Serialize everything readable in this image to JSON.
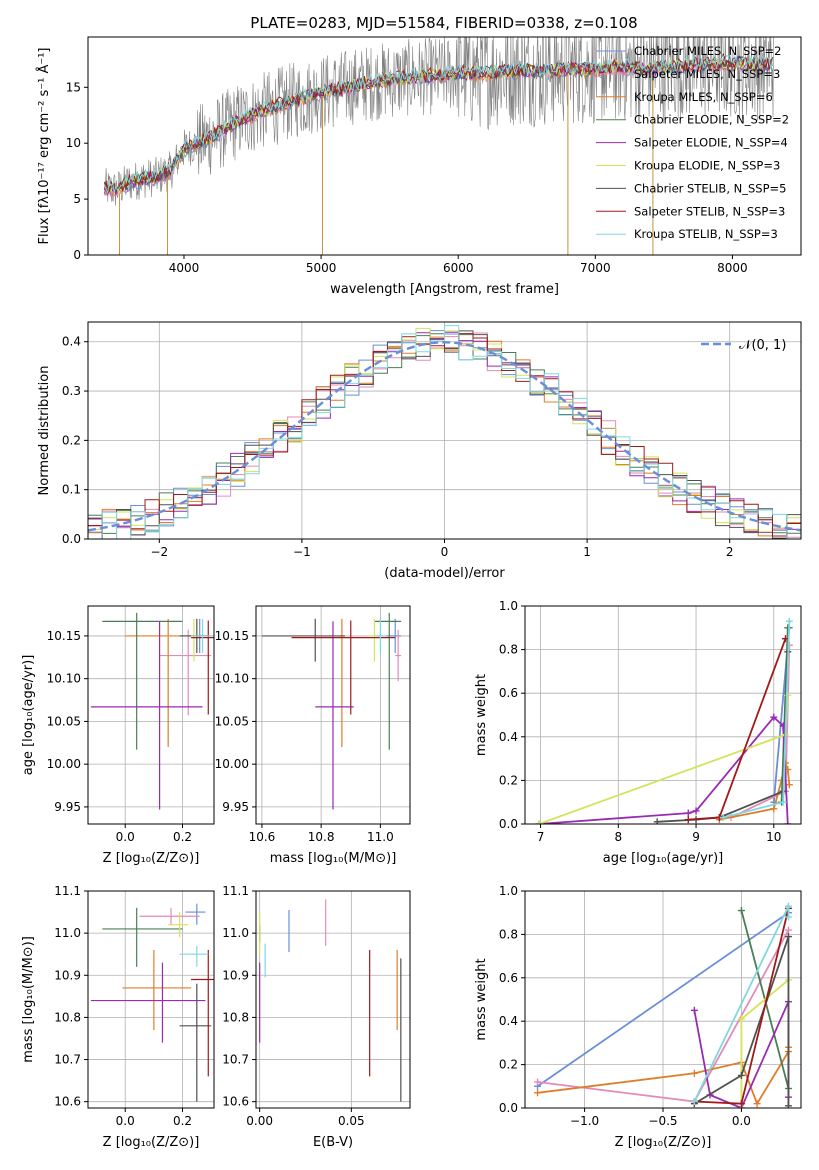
{
  "colors": {
    "Chabrier MILES": "#6a8fd8",
    "Salpeter MILES": "#e58ab8",
    "Kroupa MILES": "#de7e2b",
    "Chabrier ELODIE": "#4a7f55",
    "Salpeter ELODIE": "#9a2ab3",
    "Kroupa ELODIE": "#d4e35a",
    "Chabrier STELIB": "#505050",
    "Salpeter STELIB": "#a01a1a",
    "Kroupa STELIB": "#7fd8e0",
    "data": "#808080",
    "gaussian": "#6a8fd8"
  },
  "figure": {
    "title": "PLATE=0283, MJD=51584, FIBERID=0338, z=0.108"
  },
  "chart_data": [
    {
      "id": "spectrum",
      "type": "line",
      "title": "PLATE=0283, MJD=51584, FIBERID=0338, z=0.108",
      "xlabel": "wavelength [Angstrom, rest frame]",
      "ylabel": "Flux [fλ10⁻¹⁷ erg cm⁻² s⁻¹ Å⁻¹]",
      "xlim": [
        3300,
        8500
      ],
      "ylim": [
        0,
        19.5
      ],
      "xticks": [
        4000,
        5000,
        6000,
        7000,
        8000
      ],
      "yticks": [
        0,
        5,
        10,
        15
      ],
      "grid": false,
      "legend_position": "right",
      "legend": [
        {
          "label": "Chabrier MILES, N_SSP=2",
          "key": "Chabrier MILES"
        },
        {
          "label": "Salpeter MILES, N_SSP=3",
          "key": "Salpeter MILES"
        },
        {
          "label": "Kroupa MILES, N_SSP=6",
          "key": "Kroupa MILES"
        },
        {
          "label": "Chabrier ELODIE, N_SSP=2",
          "key": "Chabrier ELODIE"
        },
        {
          "label": "Salpeter ELODIE, N_SSP=4",
          "key": "Salpeter ELODIE"
        },
        {
          "label": "Kroupa ELODIE, N_SSP=3",
          "key": "Kroupa ELODIE"
        },
        {
          "label": "Chabrier STELIB, N_SSP=5",
          "key": "Chabrier STELIB"
        },
        {
          "label": "Salpeter STELIB, N_SSP=3",
          "key": "Salpeter STELIB"
        },
        {
          "label": "Kroupa STELIB, N_SSP=3",
          "key": "Kroupa STELIB"
        }
      ],
      "continuum": {
        "x": [
          3420,
          3500,
          3600,
          3700,
          3800,
          3900,
          4000,
          4200,
          4400,
          4600,
          4800,
          5000,
          5200,
          5400,
          5600,
          5800,
          6000,
          6200,
          6400,
          6600,
          6800,
          7000,
          7200,
          7400,
          7600,
          7800,
          8000,
          8200,
          8300
        ],
        "y": [
          6.0,
          5.8,
          6.5,
          6.8,
          7.0,
          7.5,
          9.5,
          10.5,
          12.0,
          13.0,
          13.8,
          14.5,
          15.0,
          15.5,
          15.8,
          16.0,
          16.3,
          16.2,
          16.5,
          16.4,
          16.6,
          16.6,
          16.8,
          16.6,
          16.9,
          17.0,
          17.1,
          17.0,
          17.0
        ]
      },
      "spikes_down": [
        {
          "x": 3530,
          "y": 0
        },
        {
          "x": 3880,
          "y": 0
        },
        {
          "x": 5010,
          "y": 0
        },
        {
          "x": 6800,
          "y": 0
        },
        {
          "x": 7420,
          "y": 0
        }
      ]
    },
    {
      "id": "residuals",
      "type": "histogram",
      "xlabel": "(data-model)/error",
      "ylabel": "Normed distribution",
      "xlim": [
        -2.5,
        2.5
      ],
      "ylim": [
        0,
        0.44
      ],
      "xticks": [
        -2,
        -1,
        0,
        1,
        2
      ],
      "yticks": [
        0.0,
        0.1,
        0.2,
        0.3,
        0.4
      ],
      "grid": true,
      "legend_position": "top-right",
      "reference_label": "𝒩(0, 1)",
      "reference_curve": "gaussian(0,1)"
    },
    {
      "id": "age-vs-Z",
      "type": "scatter",
      "xlabel": "Z [log₁₀(Z/Z⊙)]",
      "ylabel": "age  [log₁₀(age/yr)]",
      "xlim": [
        -0.13,
        0.31
      ],
      "ylim": [
        9.93,
        10.185
      ],
      "xticks": [
        0.0,
        0.2
      ],
      "yticks": [
        9.95,
        10.0,
        10.05,
        10.1,
        10.15
      ],
      "grid": true,
      "errorbars": [
        {
          "key": "Chabrier MILES",
          "x": 0.26,
          "y": 10.15,
          "xerr": [
            0.04,
            0.03
          ],
          "yerr": [
            0.02,
            0.02
          ]
        },
        {
          "key": "Salpeter MILES",
          "x": 0.22,
          "y": 10.127,
          "xerr": [
            0.1,
            0.08
          ],
          "yerr": [
            0.07,
            0.03
          ]
        },
        {
          "key": "Kroupa MILES",
          "x": 0.15,
          "y": 10.15,
          "xerr": [
            0.15,
            0.15
          ],
          "yerr": [
            0.13,
            0.02
          ]
        },
        {
          "key": "Chabrier ELODIE",
          "x": 0.04,
          "y": 10.167,
          "xerr": [
            0.12,
            0.16
          ],
          "yerr": [
            0.15,
            0.01
          ]
        },
        {
          "key": "Salpeter ELODIE",
          "x": 0.12,
          "y": 10.067,
          "xerr": [
            0.24,
            0.15
          ],
          "yerr": [
            0.12,
            0.1
          ]
        },
        {
          "key": "Kroupa ELODIE",
          "x": 0.24,
          "y": 10.15,
          "xerr": [
            0.05,
            0.05
          ],
          "yerr": [
            0.03,
            0.02
          ]
        },
        {
          "key": "Chabrier STELIB",
          "x": 0.25,
          "y": 10.15,
          "xerr": [
            0.06,
            0.04
          ],
          "yerr": [
            0.02,
            0.02
          ]
        },
        {
          "key": "Salpeter STELIB",
          "x": 0.29,
          "y": 10.148,
          "xerr": [
            0.06,
            0.05
          ],
          "yerr": [
            0.09,
            0.02
          ]
        },
        {
          "key": "Kroupa STELIB",
          "x": 0.27,
          "y": 10.15,
          "xerr": [
            0.04,
            0.04
          ],
          "yerr": [
            0.02,
            0.02
          ]
        }
      ]
    },
    {
      "id": "age-vs-mass",
      "type": "scatter",
      "xlabel": "mass [log₁₀(M/M⊙)]",
      "ylabel": "",
      "xlim": [
        10.58,
        11.1
      ],
      "ylim": [
        9.93,
        10.185
      ],
      "xticks": [
        10.6,
        10.8,
        11.0
      ],
      "yticks": [
        9.95,
        10.0,
        10.05,
        10.1,
        10.15
      ],
      "grid": true,
      "errorbars": [
        {
          "key": "Chabrier MILES",
          "x": 11.05,
          "y": 10.15,
          "xerr": [
            0.03,
            0.02
          ],
          "yerr": [
            0.02,
            0.02
          ]
        },
        {
          "key": "Salpeter MILES",
          "x": 11.06,
          "y": 10.127,
          "xerr": [
            0.01,
            0.01
          ],
          "yerr": [
            0.03,
            0.03
          ]
        },
        {
          "key": "Kroupa MILES",
          "x": 10.87,
          "y": 10.15,
          "xerr": [
            0.01,
            0.01
          ],
          "yerr": [
            0.13,
            0.02
          ]
        },
        {
          "key": "Chabrier ELODIE",
          "x": 11.03,
          "y": 10.167,
          "xerr": [
            0.05,
            0.04
          ],
          "yerr": [
            0.15,
            0.01
          ]
        },
        {
          "key": "Salpeter ELODIE",
          "x": 10.84,
          "y": 10.067,
          "xerr": [
            0.06,
            0.07
          ],
          "yerr": [
            0.12,
            0.1
          ]
        },
        {
          "key": "Kroupa ELODIE",
          "x": 10.98,
          "y": 10.15,
          "xerr": [
            0.02,
            0.02
          ],
          "yerr": [
            0.03,
            0.02
          ]
        },
        {
          "key": "Chabrier STELIB",
          "x": 10.78,
          "y": 10.15,
          "xerr": [
            0.18,
            0.1
          ],
          "yerr": [
            0.03,
            0.02
          ]
        },
        {
          "key": "Salpeter STELIB",
          "x": 10.9,
          "y": 10.148,
          "xerr": [
            0.2,
            0.15
          ],
          "yerr": [
            0.09,
            0.02
          ]
        },
        {
          "key": "Kroupa STELIB",
          "x": 11.0,
          "y": 10.15,
          "xerr": [
            0.02,
            0.02
          ],
          "yerr": [
            0.02,
            0.02
          ]
        }
      ]
    },
    {
      "id": "mass-weight-vs-age",
      "type": "line",
      "xlabel": "age  [log₁₀(age/yr)]",
      "ylabel": "mass weight",
      "xlim": [
        6.8,
        10.35
      ],
      "ylim": [
        0,
        1.0
      ],
      "xticks": [
        7,
        8,
        9,
        10
      ],
      "yticks": [
        0.0,
        0.2,
        0.4,
        0.6,
        0.8,
        1.0
      ],
      "grid": true,
      "series": [
        {
          "key": "Chabrier MILES",
          "x": [
            10.0,
            10.2
          ],
          "y": [
            0.1,
            0.9
          ]
        },
        {
          "key": "Salpeter MILES",
          "x": [
            9.45,
            10.15,
            10.2
          ],
          "y": [
            0.03,
            0.15,
            0.82
          ]
        },
        {
          "key": "Kroupa MILES",
          "x": [
            9.3,
            10.0,
            10.1,
            10.15,
            10.18,
            10.2
          ],
          "y": [
            0.02,
            0.07,
            0.2,
            0.28,
            0.25,
            0.18
          ]
        },
        {
          "key": "Chabrier ELODIE",
          "x": [
            10.1,
            10.18
          ],
          "y": [
            0.1,
            0.9
          ]
        },
        {
          "key": "Salpeter ELODIE",
          "x": [
            6.98,
            8.9,
            9.0,
            10.0,
            10.12,
            10.18
          ],
          "y": [
            0.0,
            0.05,
            0.06,
            0.49,
            0.45,
            0.0
          ]
        },
        {
          "key": "Kroupa ELODIE",
          "x": [
            6.98,
            10.15,
            10.18
          ],
          "y": [
            0.0,
            0.41,
            0.59
          ]
        },
        {
          "key": "Chabrier STELIB",
          "x": [
            8.5,
            9.0,
            9.3,
            10.12,
            10.18
          ],
          "y": [
            0.01,
            0.02,
            0.03,
            0.15,
            0.79
          ]
        },
        {
          "key": "Salpeter STELIB",
          "x": [
            8.9,
            9.3,
            10.15
          ],
          "y": [
            0.02,
            0.03,
            0.85
          ]
        },
        {
          "key": "Kroupa STELIB",
          "x": [
            9.35,
            10.12,
            10.2
          ],
          "y": [
            0.03,
            0.1,
            0.93
          ]
        }
      ]
    },
    {
      "id": "mass-vs-Z",
      "type": "scatter",
      "xlabel": "Z [log₁₀(Z/Z⊙)]",
      "ylabel": "mass [log₁₀(M/M⊙)]",
      "xlim": [
        -0.13,
        0.31
      ],
      "ylim": [
        10.585,
        11.1
      ],
      "xticks": [
        0.0,
        0.2
      ],
      "yticks": [
        10.6,
        10.7,
        10.8,
        10.9,
        11.0,
        11.1
      ],
      "grid": true,
      "errorbars": [
        {
          "key": "Chabrier MILES",
          "x": 0.25,
          "y": 11.05,
          "xerr": [
            0.04,
            0.03
          ],
          "yerr": [
            0.03,
            0.02
          ]
        },
        {
          "key": "Salpeter MILES",
          "x": 0.16,
          "y": 11.04,
          "xerr": [
            0.11,
            0.1
          ],
          "yerr": [
            0.02,
            0.02
          ]
        },
        {
          "key": "Kroupa MILES",
          "x": 0.1,
          "y": 10.87,
          "xerr": [
            0.11,
            0.13
          ],
          "yerr": [
            0.1,
            0.09
          ]
        },
        {
          "key": "Chabrier ELODIE",
          "x": 0.04,
          "y": 11.01,
          "xerr": [
            0.12,
            0.16
          ],
          "yerr": [
            0.09,
            0.05
          ]
        },
        {
          "key": "Salpeter ELODIE",
          "x": 0.13,
          "y": 10.84,
          "xerr": [
            0.25,
            0.15
          ],
          "yerr": [
            0.1,
            0.09
          ]
        },
        {
          "key": "Kroupa ELODIE",
          "x": 0.19,
          "y": 11.02,
          "xerr": [
            0.04,
            0.03
          ],
          "yerr": [
            0.03,
            0.03
          ]
        },
        {
          "key": "Chabrier STELIB",
          "x": 0.25,
          "y": 10.78,
          "xerr": [
            0.06,
            0.05
          ],
          "yerr": [
            0.18,
            0.1
          ]
        },
        {
          "key": "Salpeter STELIB",
          "x": 0.29,
          "y": 10.89,
          "xerr": [
            0.06,
            0.05
          ],
          "yerr": [
            0.23,
            0.07
          ]
        },
        {
          "key": "Kroupa STELIB",
          "x": 0.25,
          "y": 10.95,
          "xerr": [
            0.06,
            0.04
          ],
          "yerr": [
            0.03,
            0.02
          ]
        }
      ]
    },
    {
      "id": "mass-vs-EBV",
      "type": "scatter",
      "xlabel": "E(B-V)",
      "ylabel": "",
      "xlim": [
        -0.002,
        0.082
      ],
      "ylim": [
        10.585,
        11.1
      ],
      "xticks": [
        0.0,
        0.05
      ],
      "yticks": [
        10.6,
        10.7,
        10.8,
        10.9,
        11.0,
        11.1
      ],
      "grid": true,
      "errorbars": [
        {
          "key": "Chabrier MILES",
          "x": 0.016,
          "y": 11.005,
          "xerr": [
            0,
            0
          ],
          "yerr": [
            0.05,
            0.05
          ]
        },
        {
          "key": "Salpeter MILES",
          "x": 0.036,
          "y": 11.02,
          "xerr": [
            0,
            0
          ],
          "yerr": [
            0.05,
            0.06
          ]
        },
        {
          "key": "Kroupa MILES",
          "x": 0.075,
          "y": 10.87,
          "xerr": [
            0,
            0
          ],
          "yerr": [
            0.1,
            0.09
          ]
        },
        {
          "key": "Chabrier ELODIE",
          "x": 0.0,
          "y": 11.0,
          "xerr": [
            0,
            0
          ],
          "yerr": [
            0.02,
            0.02
          ]
        },
        {
          "key": "Salpeter ELODIE",
          "x": 0.0,
          "y": 10.84,
          "xerr": [
            0,
            0
          ],
          "yerr": [
            0.1,
            0.09
          ]
        },
        {
          "key": "Kroupa ELODIE",
          "x": 0.0,
          "y": 11.0,
          "xerr": [
            0,
            0
          ],
          "yerr": [
            0.05,
            0.05
          ]
        },
        {
          "key": "Chabrier STELIB",
          "x": 0.077,
          "y": 10.78,
          "xerr": [
            0,
            0
          ],
          "yerr": [
            0.18,
            0.16
          ]
        },
        {
          "key": "Salpeter STELIB",
          "x": 0.06,
          "y": 10.81,
          "xerr": [
            0,
            0
          ],
          "yerr": [
            0.15,
            0.15
          ]
        },
        {
          "key": "Kroupa STELIB",
          "x": 0.003,
          "y": 10.935,
          "xerr": [
            0,
            0
          ],
          "yerr": [
            0.04,
            0.04
          ]
        }
      ]
    },
    {
      "id": "mass-weight-vs-Z",
      "type": "line",
      "xlabel": "Z [log₁₀(Z/Z⊙)]",
      "ylabel": "mass weight",
      "xlim": [
        -1.38,
        0.38
      ],
      "ylim": [
        0,
        1.0
      ],
      "xticks": [
        -1.0,
        -0.5,
        0.0
      ],
      "yticks": [
        0.0,
        0.2,
        0.4,
        0.6,
        0.8,
        1.0
      ],
      "grid": true,
      "series": [
        {
          "key": "Chabrier MILES",
          "x": [
            -1.3,
            0.3
          ],
          "y": [
            0.1,
            0.9
          ]
        },
        {
          "key": "Salpeter MILES",
          "x": [
            -1.3,
            -0.3,
            0.3
          ],
          "y": [
            0.12,
            0.03,
            0.82
          ]
        },
        {
          "key": "Kroupa MILES",
          "x": [
            -1.3,
            -0.3,
            0.0,
            0.1,
            0.3,
            0.3
          ],
          "y": [
            0.07,
            0.16,
            0.21,
            0.02,
            0.26,
            0.28
          ]
        },
        {
          "key": "Chabrier ELODIE",
          "x": [
            0.0,
            0.3
          ],
          "y": [
            0.91,
            0.09
          ]
        },
        {
          "key": "Salpeter ELODIE",
          "x": [
            -0.3,
            -0.2,
            0.0,
            0.3,
            0.3
          ],
          "y": [
            0.45,
            0.06,
            0.0,
            0.49,
            0.05
          ]
        },
        {
          "key": "Kroupa ELODIE",
          "x": [
            0.0,
            0.0,
            0.3
          ],
          "y": [
            0.0,
            0.41,
            0.59
          ]
        },
        {
          "key": "Chabrier STELIB",
          "x": [
            -0.3,
            0.0,
            0.3,
            0.3
          ],
          "y": [
            0.02,
            0.15,
            0.79,
            0.01
          ]
        },
        {
          "key": "Salpeter STELIB",
          "x": [
            -0.3,
            0.0,
            0.3
          ],
          "y": [
            0.03,
            0.02,
            0.92
          ]
        },
        {
          "key": "Kroupa STELIB",
          "x": [
            -0.3,
            0.3,
            0.3
          ],
          "y": [
            0.03,
            0.93,
            0.88
          ]
        }
      ]
    }
  ]
}
